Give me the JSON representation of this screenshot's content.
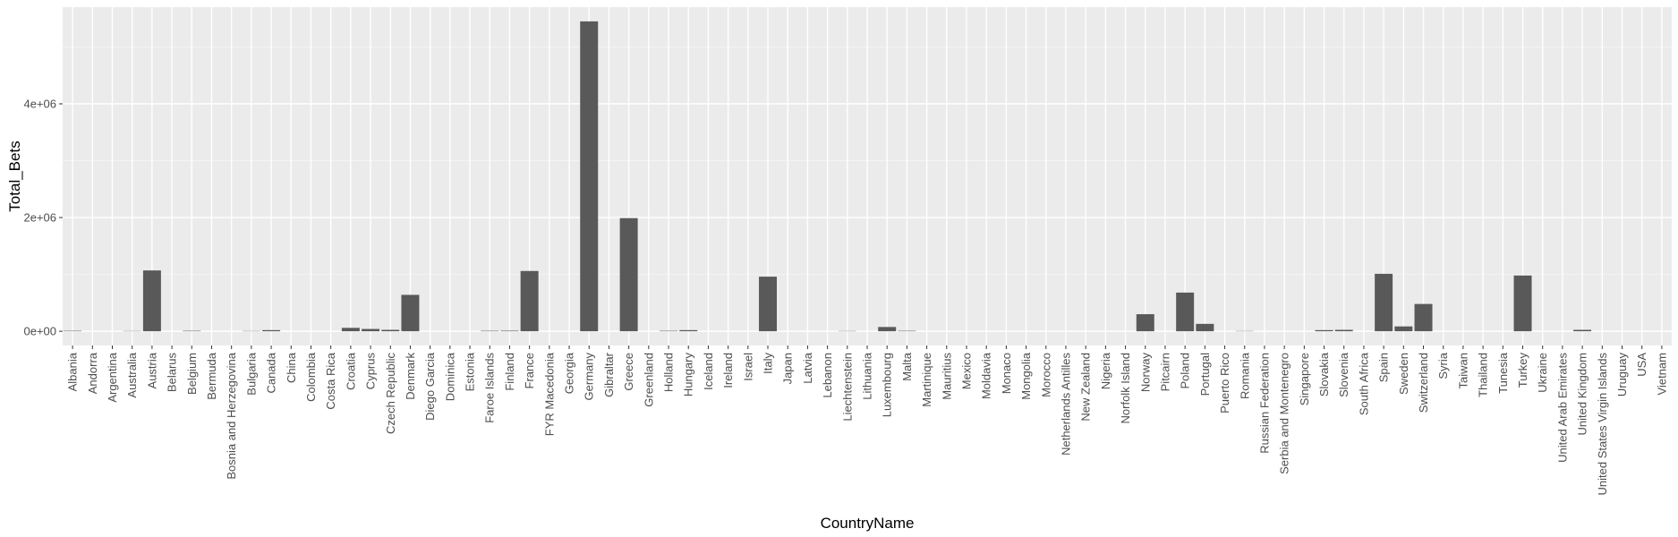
{
  "chart_data": {
    "type": "bar",
    "xlabel": "CountryName",
    "ylabel": "Total_Bets",
    "ylim": [
      -250000,
      5700000
    ],
    "y_ticks": [
      0,
      2000000,
      4000000
    ],
    "y_tick_labels": [
      "0e+00",
      "2e+06",
      "4e+06"
    ],
    "grid": true,
    "categories": [
      "Albania",
      "Andorra",
      "Argentina",
      "Australia",
      "Austria",
      "Belarus",
      "Belgium",
      "Bermuda",
      "Bosnia and Herzegovina",
      "Bulgaria",
      "Canada",
      "China",
      "Colombia",
      "Costa Rica",
      "Croatia",
      "Cyprus",
      "Czech Republic",
      "Denmark",
      "Diego Garcia",
      "Dominica",
      "Estonia",
      "Faroe Islands",
      "Finland",
      "France",
      "FYR Macedonia",
      "Georgia",
      "Germany",
      "Gibraltar",
      "Greece",
      "Greenland",
      "Holland",
      "Hungary",
      "Iceland",
      "Ireland",
      "Israel",
      "Italy",
      "Japan",
      "Latvia",
      "Lebanon",
      "Liechtenstein",
      "Lithuania",
      "Luxembourg",
      "Malta",
      "Martinique",
      "Mauritius",
      "Mexico",
      "Moldavia",
      "Monaco",
      "Mongolia",
      "Morocco",
      "Netherlands Antilles",
      "New Zealand",
      "Nigeria",
      "Norfolk Island",
      "Norway",
      "Pitcairn",
      "Poland",
      "Portugal",
      "Puerto Rico",
      "Romania",
      "Russian Federation",
      "Serbia and Montenegro",
      "Singapore",
      "Slovakia",
      "Slovenia",
      "South Africa",
      "Spain",
      "Sweden",
      "Switzerland",
      "Syria",
      "Taiwan",
      "Thailand",
      "Tunesia",
      "Turkey",
      "Ukraine",
      "United Arab Emirates",
      "United Kingdom",
      "United States Virgin Islands",
      "Uruguay",
      "USA",
      "Vietnam"
    ],
    "values": [
      8000,
      0,
      0,
      5000,
      1070000,
      0,
      8000,
      0,
      0,
      5000,
      20000,
      0,
      0,
      0,
      60000,
      40000,
      25000,
      640000,
      0,
      0,
      0,
      8000,
      10000,
      1060000,
      0,
      0,
      5450000,
      0,
      1990000,
      0,
      8000,
      20000,
      0,
      0,
      0,
      960000,
      0,
      0,
      0,
      5000,
      0,
      75000,
      8000,
      0,
      0,
      0,
      0,
      0,
      0,
      0,
      0,
      0,
      0,
      0,
      300000,
      0,
      680000,
      130000,
      0,
      5000,
      0,
      0,
      0,
      20000,
      25000,
      0,
      1010000,
      85000,
      480000,
      0,
      0,
      0,
      0,
      980000,
      0,
      0,
      25000,
      0,
      0,
      0,
      0
    ],
    "colors": {
      "bar": "#595959",
      "panel": "#ebebeb",
      "grid_major": "#ffffff",
      "grid_minor": "#f5f5f5",
      "text": "#4d4d4d",
      "title": "#000000"
    }
  }
}
